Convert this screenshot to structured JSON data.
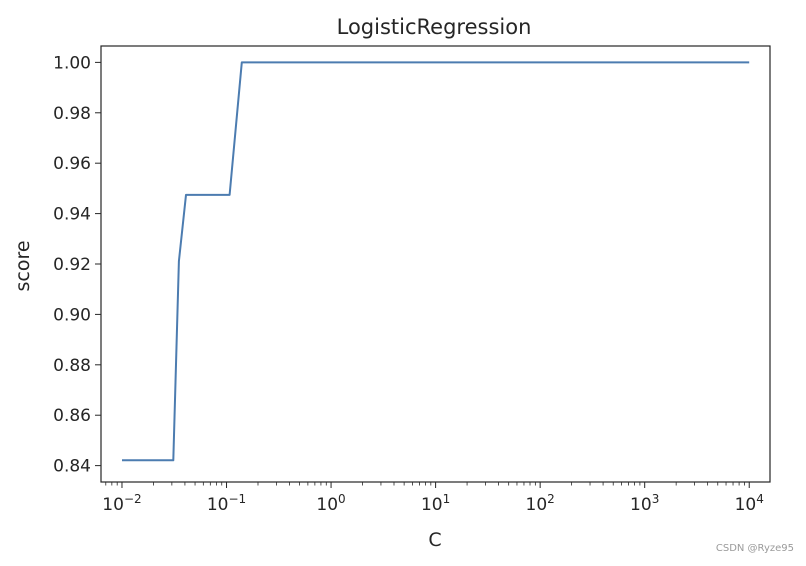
{
  "chart_data": {
    "type": "line",
    "title": "LogisticRegression",
    "xlabel": "C",
    "ylabel": "score",
    "xscale": "log",
    "xlim": [
      0.0063,
      15800
    ],
    "ylim": [
      0.8335,
      1.0065
    ],
    "grid": false,
    "xticks": [
      {
        "value": 0.01,
        "base": "10",
        "exp": "−2"
      },
      {
        "value": 0.1,
        "base": "10",
        "exp": "−1"
      },
      {
        "value": 1,
        "base": "10",
        "exp": "0"
      },
      {
        "value": 10,
        "base": "10",
        "exp": "1"
      },
      {
        "value": 100,
        "base": "10",
        "exp": "2"
      },
      {
        "value": 1000,
        "base": "10",
        "exp": "3"
      },
      {
        "value": 10000,
        "base": "10",
        "exp": "4"
      }
    ],
    "yticks": [
      "0.84",
      "0.86",
      "0.88",
      "0.90",
      "0.92",
      "0.94",
      "0.96",
      "0.98",
      "1.00"
    ],
    "series": [
      {
        "color": "#4c7cb0",
        "x": [
          0.01,
          0.031,
          0.035,
          0.041,
          0.107,
          0.14,
          10000
        ],
        "y": [
          0.8421,
          0.8421,
          0.9211,
          0.9474,
          0.9474,
          1.0,
          1.0
        ]
      }
    ]
  },
  "watermark": "CSDN @Ryze95"
}
